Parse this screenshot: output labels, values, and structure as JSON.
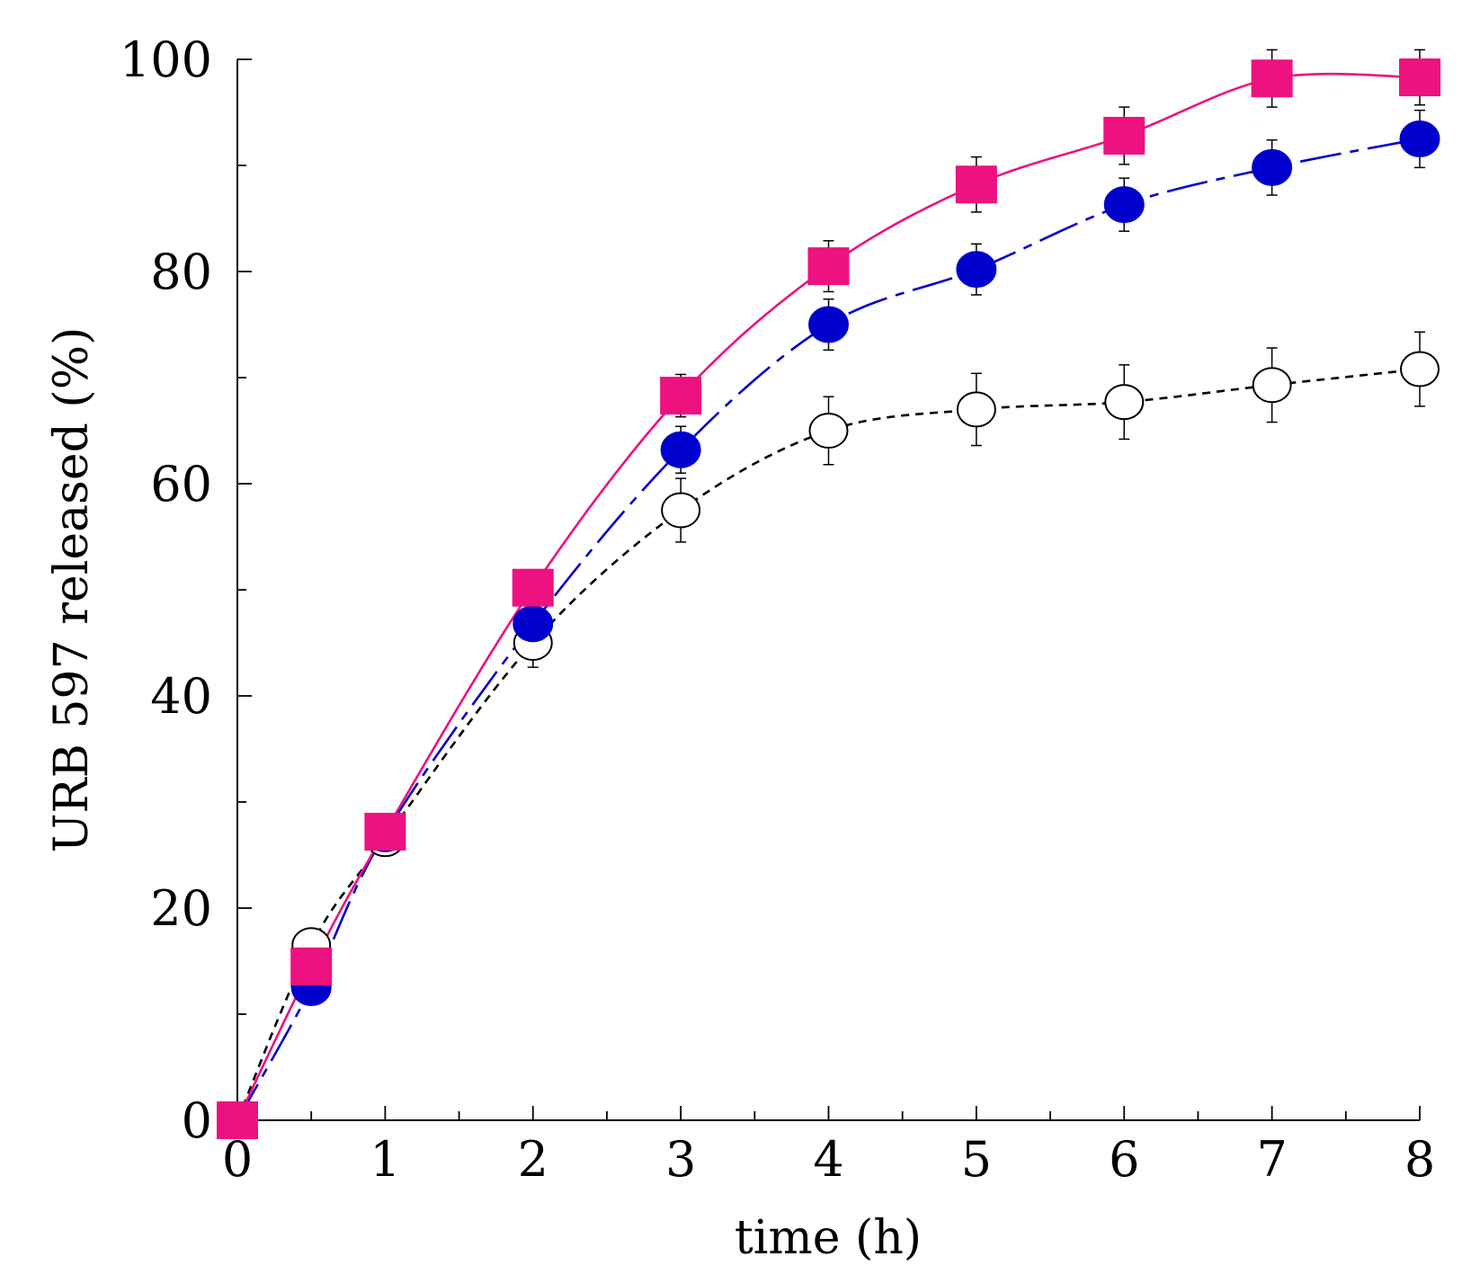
{
  "chart_data": {
    "type": "line",
    "title": "",
    "xlabel": "time (h)",
    "ylabel": "URB 597 released (%)",
    "xlim": [
      0,
      8
    ],
    "ylim": [
      0,
      100
    ],
    "x_ticks": [
      "0",
      "1",
      "2",
      "3",
      "4",
      "5",
      "6",
      "7",
      "8"
    ],
    "y_ticks": [
      "0",
      "20",
      "40",
      "60",
      "80",
      "100"
    ],
    "grid": false,
    "legend": "none",
    "series": [
      {
        "name": "open circles",
        "marker": "circle-open",
        "color": "#000000",
        "line_style": "dotted",
        "x": [
          0,
          0.5,
          1,
          2,
          3,
          4,
          5,
          6,
          7,
          8
        ],
        "y": [
          0,
          16.5,
          26.5,
          45,
          57.5,
          65,
          67,
          67.7,
          69.3,
          70.8
        ],
        "err": [
          0,
          0,
          0,
          2.3,
          3,
          3.2,
          3.4,
          3.5,
          3.5,
          3.5
        ]
      },
      {
        "name": "filled circles",
        "marker": "circle-filled",
        "color": "#0000cc",
        "line_style": "dashed",
        "x": [
          0,
          0.5,
          1,
          2,
          3,
          4,
          5,
          6,
          7,
          8
        ],
        "y": [
          0,
          12.5,
          27,
          46.8,
          63.2,
          75,
          80.2,
          86.3,
          89.8,
          92.5
        ],
        "err": [
          0,
          0,
          0,
          0,
          2.2,
          2.4,
          2.4,
          2.5,
          2.6,
          2.7
        ]
      },
      {
        "name": "filled squares",
        "marker": "square-filled",
        "color": "#ee1180",
        "line_style": "solid",
        "x": [
          0,
          0.5,
          1,
          2,
          3,
          4,
          5,
          6,
          7,
          8
        ],
        "y": [
          0,
          14.5,
          27.2,
          50.2,
          68.3,
          80.5,
          88.2,
          92.8,
          98.2,
          98.3
        ],
        "err": [
          0,
          0,
          0,
          0,
          2,
          2.4,
          2.6,
          2.7,
          2.7,
          2.6
        ]
      }
    ]
  }
}
